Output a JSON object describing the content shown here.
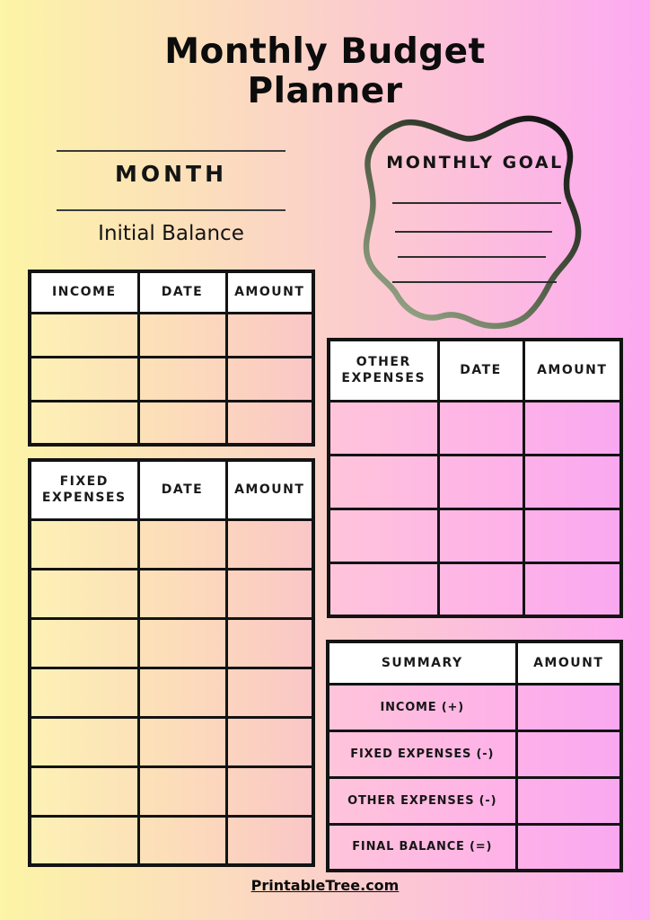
{
  "page": {
    "title": "Monthly Budget Planner",
    "footer_link": "PrintableTree.com"
  },
  "month_section": {
    "label": "MONTH",
    "sub_label": "Initial Balance"
  },
  "goal": {
    "title": "MONTHLY GOAL",
    "writing_lines": 4
  },
  "tables": {
    "income": {
      "columns": [
        "INCOME",
        "DATE",
        "AMOUNT"
      ],
      "empty_rows": 3
    },
    "fixed": {
      "columns": [
        "FIXED EXPENSES",
        "DATE",
        "AMOUNT"
      ],
      "empty_rows": 7
    },
    "other": {
      "columns": [
        "OTHER EXPENSES",
        "DATE",
        "AMOUNT"
      ],
      "empty_rows": 4
    },
    "summary": {
      "columns": [
        "SUMMARY",
        "AMOUNT"
      ],
      "rows": [
        "INCOME (+)",
        "FIXED EXPENSES (-)",
        "OTHER EXPENSES (-)",
        "FINAL BALANCE (=)"
      ]
    }
  },
  "colors": {
    "bg-left": "#FCF4A6",
    "bg-mid": "#FBD2C8",
    "bg-right": "#FDA9F2",
    "cell-warm-1": "#FDF1B5",
    "cell-warm-2": "#FCDDB9",
    "cell-warm-3": "#FAC6C7",
    "cell-pink-1": "#FFC4DA",
    "cell-pink-2": "#FEB3E7",
    "cell-pink-3": "#F9A8F0",
    "blob-dark": "#141414",
    "blob-mid": "#44503A",
    "blob-light": "#9BAA8B"
  }
}
